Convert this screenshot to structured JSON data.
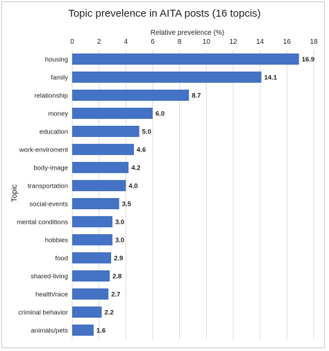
{
  "chart_data": {
    "type": "bar",
    "orientation": "horizontal",
    "title": "Topic prevelence in AITA posts (16 topcis)",
    "xlabel": "Relative prevelence (%)",
    "ylabel": "Topic",
    "xlim": [
      0,
      18
    ],
    "xticks": [
      "0",
      "2",
      "4",
      "6",
      "8",
      "10",
      "12",
      "14",
      "16",
      "18"
    ],
    "grid": "vertical",
    "x_axis_position": "top",
    "bar_color": "#4472C4",
    "categories": [
      "housing",
      "family",
      "relationship",
      "money",
      "education",
      "work-enviroment",
      "body-image",
      "transportation",
      "social-events",
      "mental conditions",
      "hobbies",
      "food",
      "shared-living",
      "health/race",
      "criminal behavior",
      "animals/pets"
    ],
    "values": [
      16.9,
      14.1,
      8.7,
      6.0,
      5.0,
      4.6,
      4.2,
      4.0,
      3.5,
      3.0,
      3.0,
      2.9,
      2.8,
      2.7,
      2.2,
      1.6
    ],
    "data_labels": [
      "16.9",
      "14.1",
      "8.7",
      "6.0",
      "5.0",
      "4.6",
      "4.2",
      "4.0",
      "3.5",
      "3.0",
      "3.0",
      "2.9",
      "2.8",
      "2.7",
      "2.2",
      "1.6"
    ]
  }
}
